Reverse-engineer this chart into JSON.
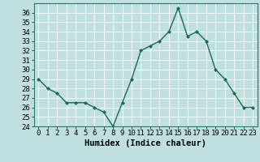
{
  "x": [
    0,
    1,
    2,
    3,
    4,
    5,
    6,
    7,
    8,
    9,
    10,
    11,
    12,
    13,
    14,
    15,
    16,
    17,
    18,
    19,
    20,
    21,
    22,
    23
  ],
  "y": [
    29,
    28,
    27.5,
    26.5,
    26.5,
    26.5,
    26,
    25.5,
    24,
    26.5,
    29,
    32,
    32.5,
    33,
    34,
    36.5,
    33.5,
    34,
    33,
    30,
    29,
    27.5,
    26,
    26
  ],
  "line_color": "#1a6b55",
  "marker": "D",
  "marker_size": 2.0,
  "bg_color": "#c0e0e0",
  "grid_color": "#aad4d4",
  "xlabel": "Humidex (Indice chaleur)",
  "ylabel": "",
  "title": "",
  "xlim": [
    -0.5,
    23.5
  ],
  "ylim": [
    24,
    37
  ],
  "yticks": [
    24,
    25,
    26,
    27,
    28,
    29,
    30,
    31,
    32,
    33,
    34,
    35,
    36
  ],
  "xticks": [
    0,
    1,
    2,
    3,
    4,
    5,
    6,
    7,
    8,
    9,
    10,
    11,
    12,
    13,
    14,
    15,
    16,
    17,
    18,
    19,
    20,
    21,
    22,
    23
  ],
  "xlabel_fontsize": 7.5,
  "tick_fontsize": 6.5,
  "linewidth": 1.0
}
